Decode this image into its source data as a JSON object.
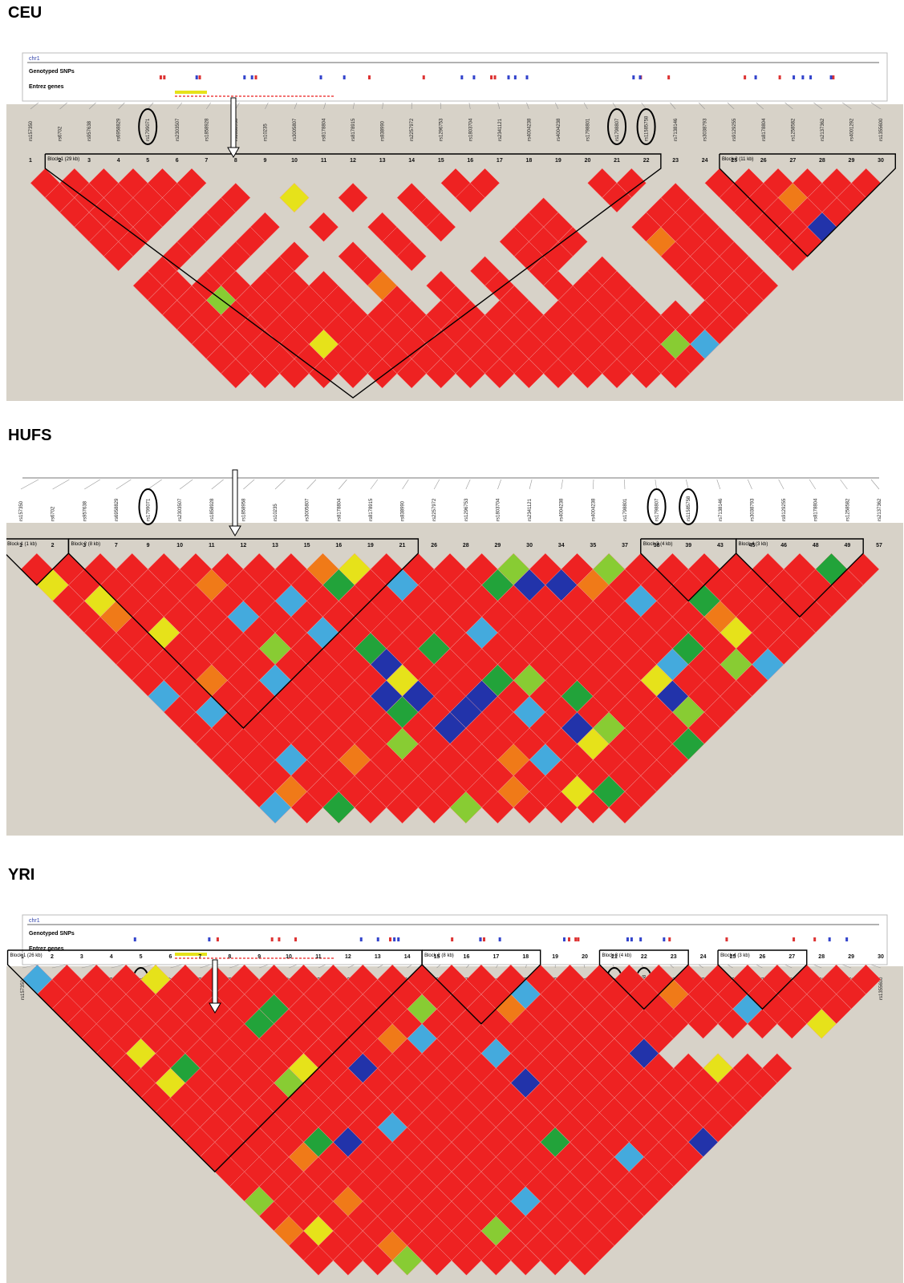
{
  "panels": [
    {
      "id": "ceu",
      "label": "CEU",
      "track": {
        "chr": "chr1",
        "genotyped": "Genotyped SNPs",
        "genes": "Entrez genes"
      },
      "snp_numbers": [
        "1",
        "2",
        "3",
        "4",
        "5",
        "6",
        "7",
        "8",
        "9",
        "10",
        "11",
        "12",
        "13",
        "14",
        "15",
        "16",
        "17",
        "18",
        "19",
        "20",
        "21",
        "22",
        "23",
        "24",
        "25",
        "26",
        "27",
        "28",
        "29",
        "30"
      ],
      "snp_ids": [
        "rs157350",
        "rs6702",
        "rs957638",
        "rs6958829",
        "rs1799071",
        "rs2303507",
        "rs1858928",
        "rs1858958",
        "rs10235",
        "rs3005807",
        "rs8178804",
        "rs8178915",
        "rs838990",
        "rs2257972",
        "rs1296753",
        "rs1803704",
        "rs2341121",
        "rs4004238",
        "rs4004238",
        "rs1798801",
        "rs1798807",
        "rs11585758",
        "rs7138146",
        "rs3038793",
        "rs9129255",
        "rs8178804",
        "rs1258582",
        "rs2137362",
        "rs4001292",
        "rs1355600"
      ],
      "blocks": [
        "Block 1 (29 kb)",
        "Block 2 (11 kb)"
      ],
      "circled": [
        "rs1799071",
        "rs1798807",
        "rs11585758"
      ]
    },
    {
      "id": "hufs",
      "label": "HUFS",
      "snp_numbers": [
        "1",
        "2",
        "3",
        "7",
        "9",
        "10",
        "11",
        "12",
        "13",
        "15",
        "16",
        "19",
        "21",
        "26",
        "28",
        "29",
        "30",
        "34",
        "35",
        "37",
        "38",
        "39",
        "43",
        "45",
        "46",
        "48",
        "49",
        "57"
      ],
      "snp_ids": [
        "rs157350",
        "rs6702",
        "rs957638",
        "rs6958829",
        "rs1799071",
        "rs2303507",
        "rs1858928",
        "rs1858958",
        "rs10235",
        "rs3005807",
        "rs8178804",
        "rs8178915",
        "rs838990",
        "rs2257972",
        "rs1296753",
        "rs1803704",
        "rs2341121",
        "rs4004238",
        "rs4004238",
        "rs1798801",
        "rs1798807",
        "rs11585758",
        "rs7138146",
        "rs3038793",
        "rs9129255",
        "rs8178804",
        "rs1258582",
        "rs2137362"
      ],
      "blocks": [
        "Block 1 (1 kb)",
        "Block 2 (8 kb)",
        "Block 3 (4 kb)",
        "Block 4 (3 kb)"
      ],
      "circled": [
        "rs1799071",
        "rs1798807",
        "rs11585758"
      ]
    },
    {
      "id": "yri",
      "label": "YRI",
      "track": {
        "chr": "chr1",
        "genotyped": "Genotyped SNPs",
        "genes": "Entrez genes"
      },
      "snp_numbers": [
        "1",
        "2",
        "3",
        "4",
        "5",
        "6",
        "7",
        "8",
        "9",
        "10",
        "11",
        "12",
        "13",
        "14",
        "15",
        "16",
        "17",
        "18",
        "19",
        "20",
        "21",
        "22",
        "23",
        "24",
        "25",
        "26",
        "27",
        "28",
        "29",
        "30"
      ],
      "snp_ids": [
        "rs157350",
        "rs6702",
        "rs957638",
        "rs6958829",
        "rs1799071",
        "rs2303507",
        "rs1858928",
        "rs1858958",
        "rs10235",
        "rs3005807",
        "rs8178804",
        "rs8178915",
        "rs838990",
        "rs2257972",
        "rs1296753",
        "rs1803704",
        "rs2341121",
        "rs4004238",
        "rs4004238",
        "rs1798801",
        "rs1798807",
        "rs11585758",
        "rs7138146",
        "rs3038793",
        "rs9129255",
        "rs8178804",
        "rs1258582",
        "rs2137362",
        "rs4001292",
        "rs1355600"
      ],
      "blocks": [
        "Block 1 (26 kb)",
        "Block 2 (8 kb)",
        "Block 3 (4 kb)",
        "Block 4 (3 kb)"
      ],
      "circled": [
        "rs1799071",
        "rs1798807",
        "rs11585758"
      ]
    }
  ],
  "colors": {
    "strong_ld": "#ee2222",
    "orange": "#f07a18",
    "yellow": "#e6e21a",
    "light_green": "#88cc33",
    "green": "#22a33a",
    "blue": "#2233aa",
    "light_blue": "#44aadd",
    "background": "#d7d2c8",
    "grid_line": "#f2a0a0"
  }
}
